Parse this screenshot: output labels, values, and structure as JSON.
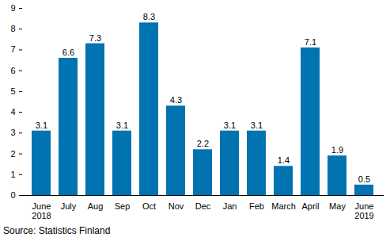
{
  "chart_data": {
    "type": "bar",
    "categories": [
      "June\n2018",
      "July",
      "Aug",
      "Sep",
      "Oct",
      "Nov",
      "Dec",
      "Jan",
      "Feb",
      "March",
      "April",
      "May",
      "June\n2019"
    ],
    "values": [
      3.1,
      6.6,
      7.3,
      3.1,
      8.3,
      4.3,
      2.2,
      3.1,
      3.1,
      1.4,
      7.1,
      1.9,
      0.5
    ],
    "color": "#0073b0",
    "ylim": [
      0,
      9
    ],
    "yticks": [
      0,
      1,
      2,
      3,
      4,
      5,
      6,
      7,
      8,
      9
    ],
    "grid": false,
    "data_labels": true,
    "caption": "Source: Statistics Finland"
  }
}
